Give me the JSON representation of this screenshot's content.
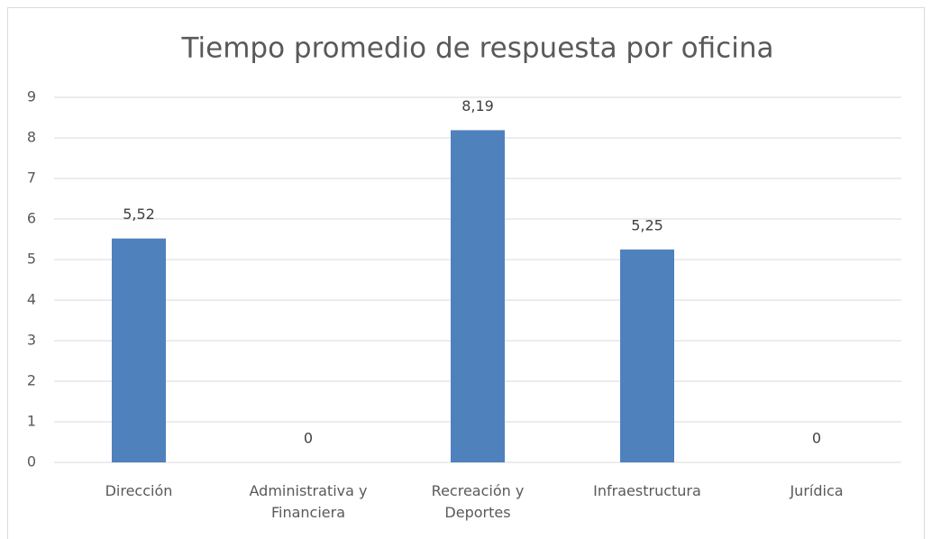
{
  "chart_data": {
    "type": "bar",
    "title": "Tiempo promedio de respuesta por oficina",
    "categories": [
      "Dirección",
      "Administrativa y\nFinanciera",
      "Recreación y\nDeportes",
      "Infraestructura",
      "Jurídica"
    ],
    "values": [
      5.52,
      0,
      8.19,
      5.25,
      0
    ],
    "value_labels": [
      "5,52",
      "0",
      "8,19",
      "5,25",
      "0"
    ],
    "color": "#4f81bd",
    "ylim": [
      0,
      9
    ],
    "yticks": [
      0,
      1,
      2,
      3,
      4,
      5,
      6,
      7,
      8,
      9
    ],
    "grid": true
  }
}
